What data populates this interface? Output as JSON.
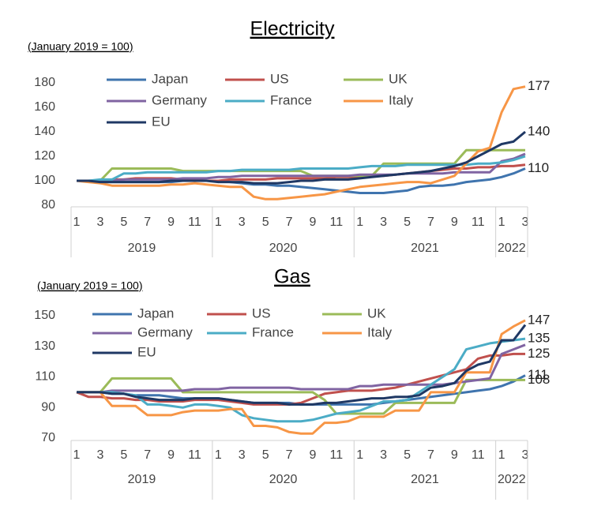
{
  "chart_data": [
    {
      "type": "line",
      "title": "Electricity",
      "subtitle": "(January 2019 = 100)",
      "categories": [
        "1",
        null,
        "3",
        null,
        "5",
        null,
        "7",
        null,
        "9",
        null,
        "11",
        null,
        "1",
        null,
        "3",
        null,
        "5",
        null,
        "7",
        null,
        "9",
        null,
        "11",
        null,
        "1",
        null,
        "3",
        null,
        "5",
        null,
        "7",
        null,
        "9",
        null,
        "11",
        null,
        "1",
        null,
        "3"
      ],
      "years": [
        "2019",
        "2020",
        "2021",
        "2022"
      ],
      "ylim": [
        80,
        180
      ],
      "yticks": [
        80,
        100,
        120,
        140,
        160,
        180
      ],
      "grid": false,
      "legend": "top-left",
      "series": [
        {
          "name": "Japan",
          "color": "#3f74ae",
          "end_label": "110",
          "values": [
            100,
            100,
            99,
            99,
            99,
            99,
            99,
            99,
            99,
            100,
            100,
            100,
            100,
            99,
            98,
            97,
            97,
            96,
            96,
            95,
            94,
            93,
            92,
            91,
            90,
            90,
            90,
            91,
            92,
            95,
            96,
            96,
            97,
            99,
            100,
            101,
            103,
            106,
            110
          ]
        },
        {
          "name": "US",
          "color": "#c0504d",
          "values": [
            100,
            100,
            100,
            101,
            101,
            102,
            102,
            102,
            102,
            101,
            101,
            100,
            100,
            101,
            101,
            101,
            101,
            102,
            102,
            102,
            102,
            102,
            103,
            103,
            103,
            104,
            104,
            105,
            106,
            107,
            108,
            109,
            110,
            110,
            111,
            111,
            112,
            112,
            113
          ]
        },
        {
          "name": "UK",
          "color": "#9bbb59",
          "values": [
            100,
            100,
            100,
            110,
            110,
            110,
            110,
            110,
            110,
            108,
            108,
            108,
            108,
            108,
            108,
            108,
            108,
            108,
            108,
            108,
            104,
            104,
            104,
            104,
            104,
            104,
            114,
            114,
            114,
            114,
            114,
            114,
            114,
            125,
            125,
            125,
            125,
            125,
            125
          ]
        },
        {
          "name": "Germany",
          "color": "#8064a2",
          "values": [
            100,
            100,
            100,
            100,
            101,
            101,
            101,
            101,
            101,
            102,
            102,
            102,
            103,
            103,
            104,
            104,
            104,
            104,
            104,
            104,
            104,
            104,
            104,
            104,
            105,
            105,
            105,
            105,
            106,
            106,
            106,
            106,
            107,
            107,
            107,
            107,
            116,
            118,
            122
          ]
        },
        {
          "name": "France",
          "color": "#4bacc6",
          "values": [
            100,
            100,
            101,
            101,
            106,
            106,
            107,
            107,
            107,
            107,
            107,
            107,
            108,
            108,
            109,
            109,
            109,
            109,
            109,
            110,
            110,
            110,
            110,
            110,
            111,
            112,
            112,
            112,
            113,
            113,
            113,
            113,
            113,
            113,
            114,
            114,
            115,
            117,
            120
          ]
        },
        {
          "name": "Italy",
          "color": "#f79646",
          "end_label": "177",
          "values": [
            100,
            99,
            98,
            96,
            96,
            96,
            96,
            96,
            97,
            97,
            98,
            97,
            96,
            95,
            95,
            87,
            85,
            85,
            86,
            87,
            88,
            89,
            91,
            93,
            95,
            96,
            97,
            98,
            99,
            99,
            98,
            101,
            104,
            114,
            124,
            127,
            156,
            175,
            177
          ]
        },
        {
          "name": "EU",
          "color": "#1f3864",
          "end_label": "140",
          "values": [
            100,
            100,
            99,
            99,
            99,
            99,
            99,
            99,
            100,
            100,
            100,
            100,
            99,
            99,
            99,
            98,
            98,
            98,
            99,
            100,
            100,
            101,
            101,
            101,
            102,
            103,
            104,
            105,
            106,
            107,
            108,
            110,
            112,
            115,
            120,
            125,
            130,
            132,
            140
          ]
        }
      ]
    },
    {
      "type": "line",
      "title": "Gas",
      "subtitle": "(January 2019 = 100)",
      "categories": [
        "1",
        null,
        "3",
        null,
        "5",
        null,
        "7",
        null,
        "9",
        null,
        "11",
        null,
        "1",
        null,
        "3",
        null,
        "5",
        null,
        "7",
        null,
        "9",
        null,
        "11",
        null,
        "1",
        null,
        "3",
        null,
        "5",
        null,
        "7",
        null,
        "9",
        null,
        "11",
        null,
        "1",
        null,
        "3"
      ],
      "years": [
        "2019",
        "2020",
        "2021",
        "2022"
      ],
      "ylim": [
        70,
        150
      ],
      "yticks": [
        70,
        90,
        110,
        130,
        150
      ],
      "grid": false,
      "legend": "top-left",
      "series": [
        {
          "name": "Japan",
          "color": "#3f74ae",
          "end_label": "111",
          "values": [
            100,
            100,
            100,
            99,
            99,
            98,
            98,
            98,
            97,
            96,
            96,
            96,
            96,
            95,
            94,
            93,
            93,
            93,
            93,
            92,
            92,
            92,
            92,
            92,
            92,
            92,
            93,
            94,
            95,
            96,
            97,
            98,
            99,
            100,
            101,
            102,
            104,
            107,
            111
          ]
        },
        {
          "name": "US",
          "color": "#c0504d",
          "end_label": "125",
          "values": [
            100,
            97,
            97,
            96,
            96,
            95,
            95,
            94,
            94,
            94,
            95,
            95,
            95,
            94,
            93,
            92,
            92,
            92,
            92,
            93,
            96,
            99,
            100,
            101,
            101,
            101,
            102,
            103,
            105,
            107,
            109,
            111,
            113,
            115,
            122,
            124,
            124,
            125,
            125
          ]
        },
        {
          "name": "UK",
          "color": "#9bbb59",
          "end_label": "108",
          "values": [
            100,
            100,
            100,
            109,
            109,
            109,
            109,
            109,
            109,
            100,
            100,
            100,
            100,
            100,
            100,
            100,
            100,
            100,
            100,
            100,
            100,
            95,
            86,
            86,
            86,
            86,
            86,
            93,
            93,
            93,
            93,
            93,
            93,
            108,
            108,
            108,
            108,
            108,
            108
          ]
        },
        {
          "name": "Germany",
          "color": "#8064a2",
          "values": [
            100,
            100,
            100,
            101,
            101,
            101,
            101,
            101,
            101,
            101,
            102,
            102,
            102,
            103,
            103,
            103,
            103,
            103,
            103,
            102,
            102,
            102,
            102,
            102,
            104,
            104,
            105,
            105,
            105,
            105,
            105,
            105,
            106,
            107,
            108,
            109,
            125,
            128,
            131
          ]
        },
        {
          "name": "France",
          "color": "#4bacc6",
          "end_label": "135",
          "values": [
            100,
            100,
            100,
            100,
            99,
            98,
            92,
            92,
            91,
            90,
            92,
            92,
            91,
            90,
            85,
            83,
            82,
            81,
            81,
            81,
            82,
            84,
            86,
            87,
            88,
            91,
            94,
            94,
            95,
            100,
            105,
            110,
            115,
            128,
            130,
            132,
            133,
            134,
            135
          ]
        },
        {
          "name": "Italy",
          "color": "#f79646",
          "end_label": "147",
          "values": [
            100,
            100,
            100,
            91,
            91,
            91,
            85,
            85,
            85,
            87,
            88,
            88,
            88,
            89,
            89,
            78,
            78,
            77,
            74,
            73,
            73,
            80,
            80,
            81,
            84,
            84,
            84,
            88,
            88,
            88,
            100,
            100,
            100,
            113,
            113,
            113,
            138,
            143,
            147
          ]
        },
        {
          "name": "EU",
          "color": "#1f3864",
          "values": [
            100,
            100,
            100,
            99,
            99,
            97,
            96,
            95,
            95,
            95,
            96,
            96,
            96,
            95,
            94,
            93,
            93,
            93,
            92,
            92,
            92,
            93,
            93,
            94,
            95,
            96,
            96,
            97,
            97,
            98,
            103,
            104,
            106,
            114,
            118,
            120,
            134,
            134,
            144
          ]
        }
      ]
    }
  ]
}
